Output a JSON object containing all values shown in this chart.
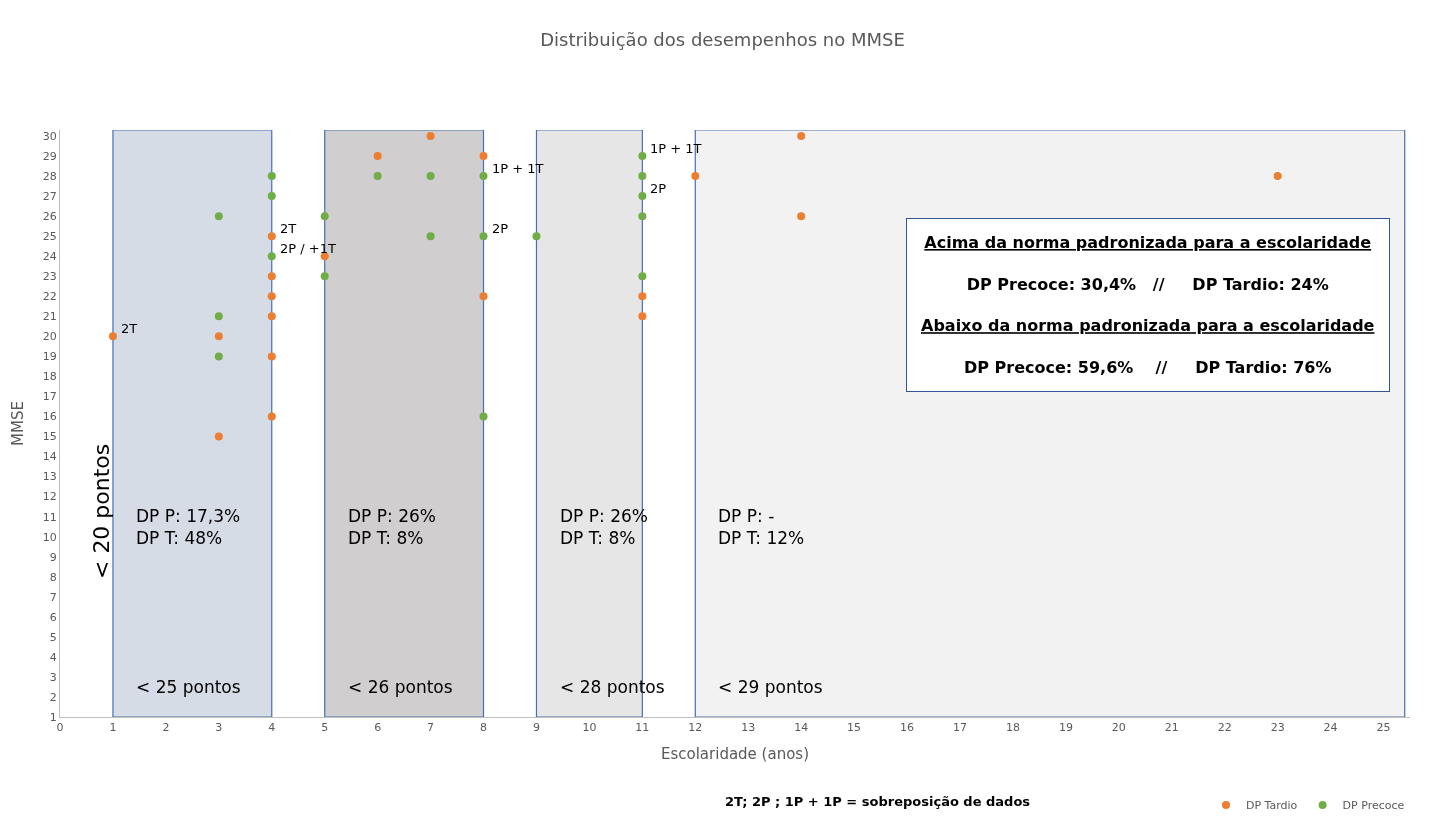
{
  "chart_data": {
    "type": "scatter",
    "title": "Distribuição dos desempenhos no MMSE",
    "xlabel": "Escolaridade (anos)",
    "ylabel": "MMSE",
    "xlim": [
      0,
      25.5
    ],
    "xticks": [
      0,
      1,
      2,
      3,
      4,
      5,
      6,
      7,
      8,
      9,
      10,
      11,
      12,
      13,
      14,
      15,
      16,
      17,
      18,
      19,
      20,
      21,
      22,
      23,
      24,
      25
    ],
    "ylim": [
      1,
      30.3
    ],
    "yticks": [
      1,
      2,
      3,
      4,
      5,
      6,
      7,
      8,
      9,
      10,
      11,
      12,
      13,
      14,
      15,
      16,
      17,
      18,
      19,
      20,
      21,
      22,
      23,
      24,
      25,
      26,
      27,
      28,
      29,
      30
    ],
    "grid": false,
    "legend": "bottom right",
    "marker": "circle",
    "series": [
      {
        "name": "DP Tardio",
        "color": "#ed7d31",
        "x": [
          1,
          3,
          3,
          4,
          4,
          4,
          4,
          4,
          4,
          5,
          6,
          7,
          8,
          8,
          11,
          11,
          12,
          14,
          14,
          23
        ],
        "values": [
          20,
          20,
          15,
          25,
          23,
          22,
          21,
          19,
          16,
          24,
          29,
          30,
          29,
          22,
          22,
          21,
          28,
          30,
          26,
          28
        ]
      },
      {
        "name": "DP Precoce",
        "color": "#70ad47",
        "x": [
          3,
          3,
          3,
          4,
          4,
          4,
          5,
          5,
          6,
          7,
          7,
          8,
          8,
          8,
          9,
          11,
          11,
          11,
          11,
          11
        ],
        "values": [
          26,
          21,
          19,
          28,
          27,
          24,
          26,
          23,
          28,
          28,
          25,
          28,
          25,
          16,
          25,
          29,
          28,
          27,
          26,
          23
        ]
      }
    ],
    "bands": [
      {
        "axis": "x",
        "from": 1,
        "to": 4,
        "label": "< 25 pontos",
        "color": "#d6dce5"
      },
      {
        "axis": "x",
        "from": 5,
        "to": 8,
        "label": "< 26 pontos",
        "color": "#d0cece"
      },
      {
        "axis": "x",
        "from": 9,
        "to": 11,
        "label": "< 28 pontos",
        "color": "#e7e6e6"
      },
      {
        "axis": "x",
        "from": 12,
        "to": 25.4,
        "label": "< 29 pontos",
        "color": "#f2f2f2"
      }
    ],
    "annotations": [
      "< 20 pontos",
      {
        "text": "2T",
        "x": 1,
        "y": 20
      },
      {
        "text": "2P / +1T",
        "x": 4,
        "y": 24
      },
      {
        "text": "2T",
        "x": 4,
        "y": 25
      },
      {
        "text": "1P + 1T",
        "x": 8,
        "y": 28
      },
      {
        "text": "2P",
        "x": 8,
        "y": 25
      },
      {
        "text": "1P + 1T",
        "x": 11,
        "y": 29
      },
      {
        "text": "2P",
        "x": 11,
        "y": 27
      },
      "DP P: 17,3%\nDP T: 48%",
      "DP P: 26%\nDP T: 8%",
      "DP P: 26%\nDP T: 8%",
      "DP P: -\nDP T: 12%",
      "Acima da norma padronizada para a escolaridade",
      "DP Precoce: 30,4%   //     DP Tardio: 24%",
      "Abaixo da norma padronizada para a escolaridade",
      "DP Precoce: 59,6%    //     DP Tardio: 76%",
      "2T; 2P ; 1P + 1P = sobreposição de dados"
    ]
  }
}
